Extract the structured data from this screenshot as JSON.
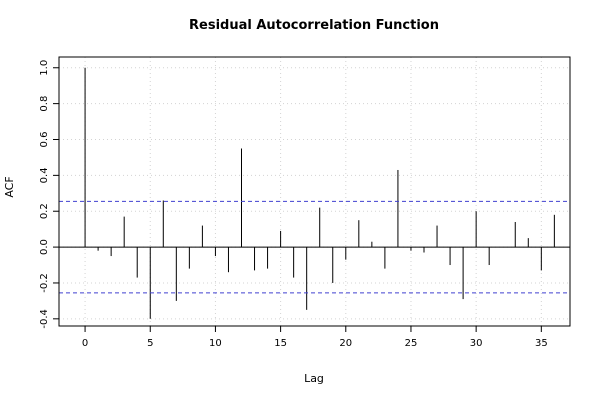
{
  "chart_data": {
    "type": "bar",
    "title": "Residual Autocorrelation Function",
    "xlabel": "Lag",
    "ylabel": "ACF",
    "xlim": [
      -2,
      37.2
    ],
    "ylim": [
      -0.44,
      1.06
    ],
    "x_ticks": [
      0,
      5,
      10,
      15,
      20,
      25,
      30,
      35
    ],
    "y_ticks": [
      -0.4,
      -0.2,
      0.0,
      0.2,
      0.4,
      0.6,
      0.8,
      1.0
    ],
    "x_tick_labels": [
      "0",
      "5",
      "10",
      "15",
      "20",
      "25",
      "30",
      "35"
    ],
    "y_tick_labels": [
      "-0.4",
      "-0.2",
      "0.0",
      "0.2",
      "0.4",
      "0.6",
      "0.8",
      "1.0"
    ],
    "grid": true,
    "confidence_band": 0.255,
    "confidence_color": "#4040d0",
    "lags": [
      0,
      1,
      2,
      3,
      4,
      5,
      6,
      7,
      8,
      9,
      10,
      11,
      12,
      13,
      14,
      15,
      16,
      17,
      18,
      19,
      20,
      21,
      22,
      23,
      24,
      25,
      26,
      27,
      28,
      29,
      30,
      31,
      32,
      33,
      34,
      35,
      36
    ],
    "values": [
      1.0,
      -0.02,
      -0.05,
      0.17,
      -0.17,
      -0.4,
      0.26,
      -0.3,
      -0.12,
      0.12,
      -0.05,
      -0.14,
      0.55,
      -0.13,
      -0.12,
      0.09,
      -0.17,
      -0.35,
      0.22,
      -0.2,
      -0.07,
      0.15,
      0.03,
      -0.12,
      0.43,
      -0.02,
      -0.03,
      0.12,
      -0.1,
      -0.29,
      0.2,
      -0.1,
      0.0,
      0.14,
      0.05,
      -0.13,
      0.18
    ]
  }
}
